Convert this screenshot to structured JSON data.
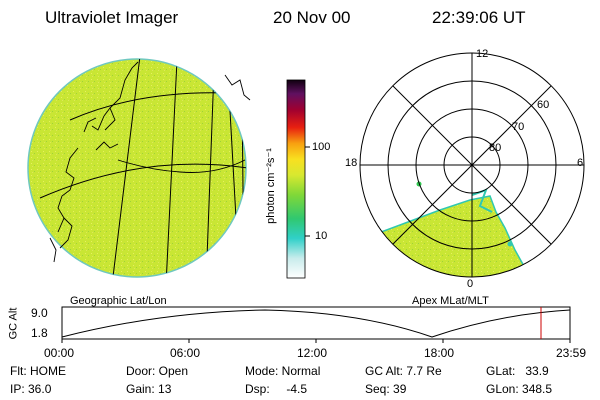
{
  "header": {
    "title": "Ultraviolet Imager",
    "date": "20 Nov 00",
    "time": "22:39:06 UT"
  },
  "left_panel": {
    "caption": "Geographic Lat/Lon",
    "fill_color": "#c8e632"
  },
  "right_panel": {
    "caption": "Apex MLat/MLT",
    "mlt_labels": [
      "12",
      "18",
      "6",
      "0"
    ],
    "mlat_labels": [
      "60",
      "70",
      "80"
    ]
  },
  "colorbar": {
    "unit_label": "photon cm⁻²s⁻¹",
    "ticks": [
      "100",
      "10"
    ]
  },
  "altitude_plot": {
    "ylabel": "GC Alt",
    "yticks": [
      "9.0",
      "1.8"
    ],
    "xticks": [
      "00:00",
      "06:00",
      "12:00",
      "18:00",
      "23:59"
    ],
    "marker_color": "#cc0000"
  },
  "status": {
    "flt": "Flt: HOME",
    "ip": "IP: 36.0",
    "door": "Door: Open",
    "gain": "Gain: 13",
    "mode": "Mode: Normal",
    "dsp": "Dsp:     -4.5",
    "gcalt": "GC Alt: 7.7 Re",
    "seq": "Seq: 39",
    "glat": "GLat:   33.9",
    "glon": "GLon: 348.5"
  }
}
